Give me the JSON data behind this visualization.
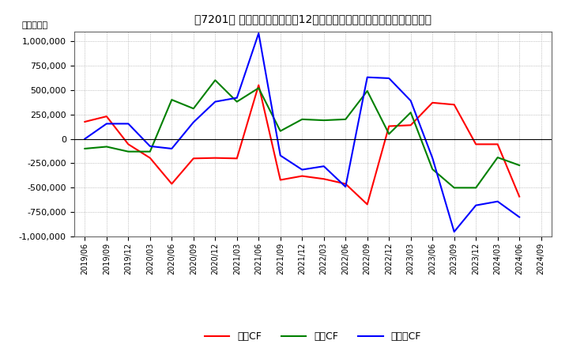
{
  "title": "［7201］ キャッシュフローの12か月移動合計の対前年同期増減額の推移",
  "ylabel": "（百万円）",
  "background_color": "#ffffff",
  "plot_bg_color": "#ffffff",
  "grid_color": "#999999",
  "ylim": [
    -1000000,
    1100000
  ],
  "yticks": [
    -1000000,
    -750000,
    -500000,
    -250000,
    0,
    250000,
    500000,
    750000,
    1000000
  ],
  "x_labels": [
    "2019/06",
    "2019/09",
    "2019/12",
    "2020/03",
    "2020/06",
    "2020/09",
    "2020/12",
    "2021/03",
    "2021/06",
    "2021/09",
    "2021/12",
    "2022/03",
    "2022/06",
    "2022/09",
    "2022/12",
    "2023/03",
    "2023/06",
    "2023/09",
    "2023/12",
    "2024/03",
    "2024/06",
    "2024/09"
  ],
  "operating_cf": [
    175000,
    230000,
    -55000,
    -195000,
    -460000,
    -200000,
    -195000,
    -200000,
    550000,
    -420000,
    -380000,
    -410000,
    -460000,
    -670000,
    130000,
    140000,
    370000,
    350000,
    -55000,
    -55000,
    -590000,
    null
  ],
  "investing_cf": [
    -100000,
    -80000,
    -130000,
    -130000,
    400000,
    310000,
    600000,
    380000,
    520000,
    80000,
    200000,
    190000,
    200000,
    490000,
    50000,
    270000,
    -310000,
    -500000,
    -500000,
    -190000,
    -270000,
    null
  ],
  "free_cf": [
    0,
    155000,
    155000,
    -75000,
    -100000,
    170000,
    380000,
    420000,
    1080000,
    -170000,
    -315000,
    -280000,
    -490000,
    630000,
    620000,
    390000,
    -195000,
    -950000,
    -680000,
    -640000,
    -800000,
    null
  ],
  "line_colors": {
    "operating": "#ff0000",
    "investing": "#008000",
    "free": "#0000ff"
  },
  "legend_labels": [
    "営業CF",
    "投資CF",
    "フリーCF"
  ]
}
